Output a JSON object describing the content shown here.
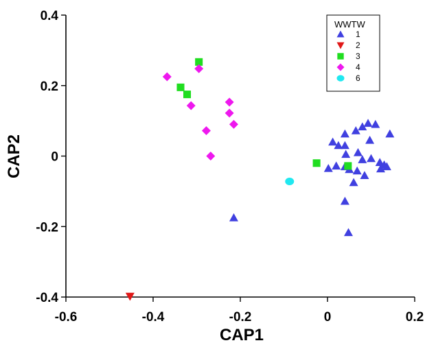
{
  "chart_data": {
    "type": "scatter",
    "title": "",
    "xlabel": "CAP1",
    "ylabel": "CAP2",
    "xlim": [
      -0.6,
      0.2
    ],
    "ylim": [
      -0.4,
      0.4
    ],
    "xticks": [
      "-0.6",
      "-0.4",
      "-0.2",
      "0",
      "0.2"
    ],
    "yticks": [
      "0.4",
      "0.2",
      "0",
      "-0.2",
      "-0.4"
    ],
    "legend_position": "top-right",
    "legend_title": "WWTW",
    "series": [
      {
        "name": "1",
        "marker": "triangle-up",
        "color": "#4040e0",
        "points": [
          [
            -0.215,
            -0.175
          ],
          [
            0.04,
            -0.128
          ],
          [
            0.048,
            -0.217
          ],
          [
            0.012,
            0.04
          ],
          [
            0.025,
            0.03
          ],
          [
            0.04,
            0.03
          ],
          [
            0.04,
            0.063
          ],
          [
            0.065,
            0.072
          ],
          [
            0.08,
            0.083
          ],
          [
            0.093,
            0.093
          ],
          [
            0.11,
            0.09
          ],
          [
            0.143,
            0.063
          ],
          [
            0.097,
            0.045
          ],
          [
            0.07,
            0.01
          ],
          [
            0.042,
            0.005
          ],
          [
            0.1,
            -0.007
          ],
          [
            0.08,
            -0.01
          ],
          [
            0.12,
            -0.018
          ],
          [
            0.13,
            -0.025
          ],
          [
            0.136,
            -0.03
          ],
          [
            0.122,
            -0.036
          ],
          [
            0.002,
            -0.035
          ],
          [
            0.02,
            -0.028
          ],
          [
            0.04,
            -0.03
          ],
          [
            0.05,
            -0.038
          ],
          [
            0.068,
            -0.042
          ],
          [
            0.085,
            -0.055
          ],
          [
            0.06,
            -0.075
          ]
        ]
      },
      {
        "name": "2",
        "marker": "triangle-down",
        "color": "#e01818",
        "points": [
          [
            -0.453,
            -0.398
          ]
        ]
      },
      {
        "name": "3",
        "marker": "square",
        "color": "#20dd20",
        "points": [
          [
            -0.295,
            0.267
          ],
          [
            -0.337,
            0.195
          ],
          [
            -0.322,
            0.175
          ],
          [
            -0.025,
            -0.02
          ],
          [
            0.047,
            -0.028
          ]
        ]
      },
      {
        "name": "4",
        "marker": "diamond",
        "color": "#ee18ee",
        "points": [
          [
            -0.368,
            0.225
          ],
          [
            -0.295,
            0.248
          ],
          [
            -0.313,
            0.143
          ],
          [
            -0.278,
            0.072
          ],
          [
            -0.268,
            0.0
          ],
          [
            -0.225,
            0.153
          ],
          [
            -0.225,
            0.122
          ],
          [
            -0.215,
            0.09
          ]
        ]
      },
      {
        "name": "6",
        "marker": "circle",
        "color": "#20e8f0",
        "points": [
          [
            -0.087,
            -0.072
          ]
        ]
      }
    ]
  }
}
